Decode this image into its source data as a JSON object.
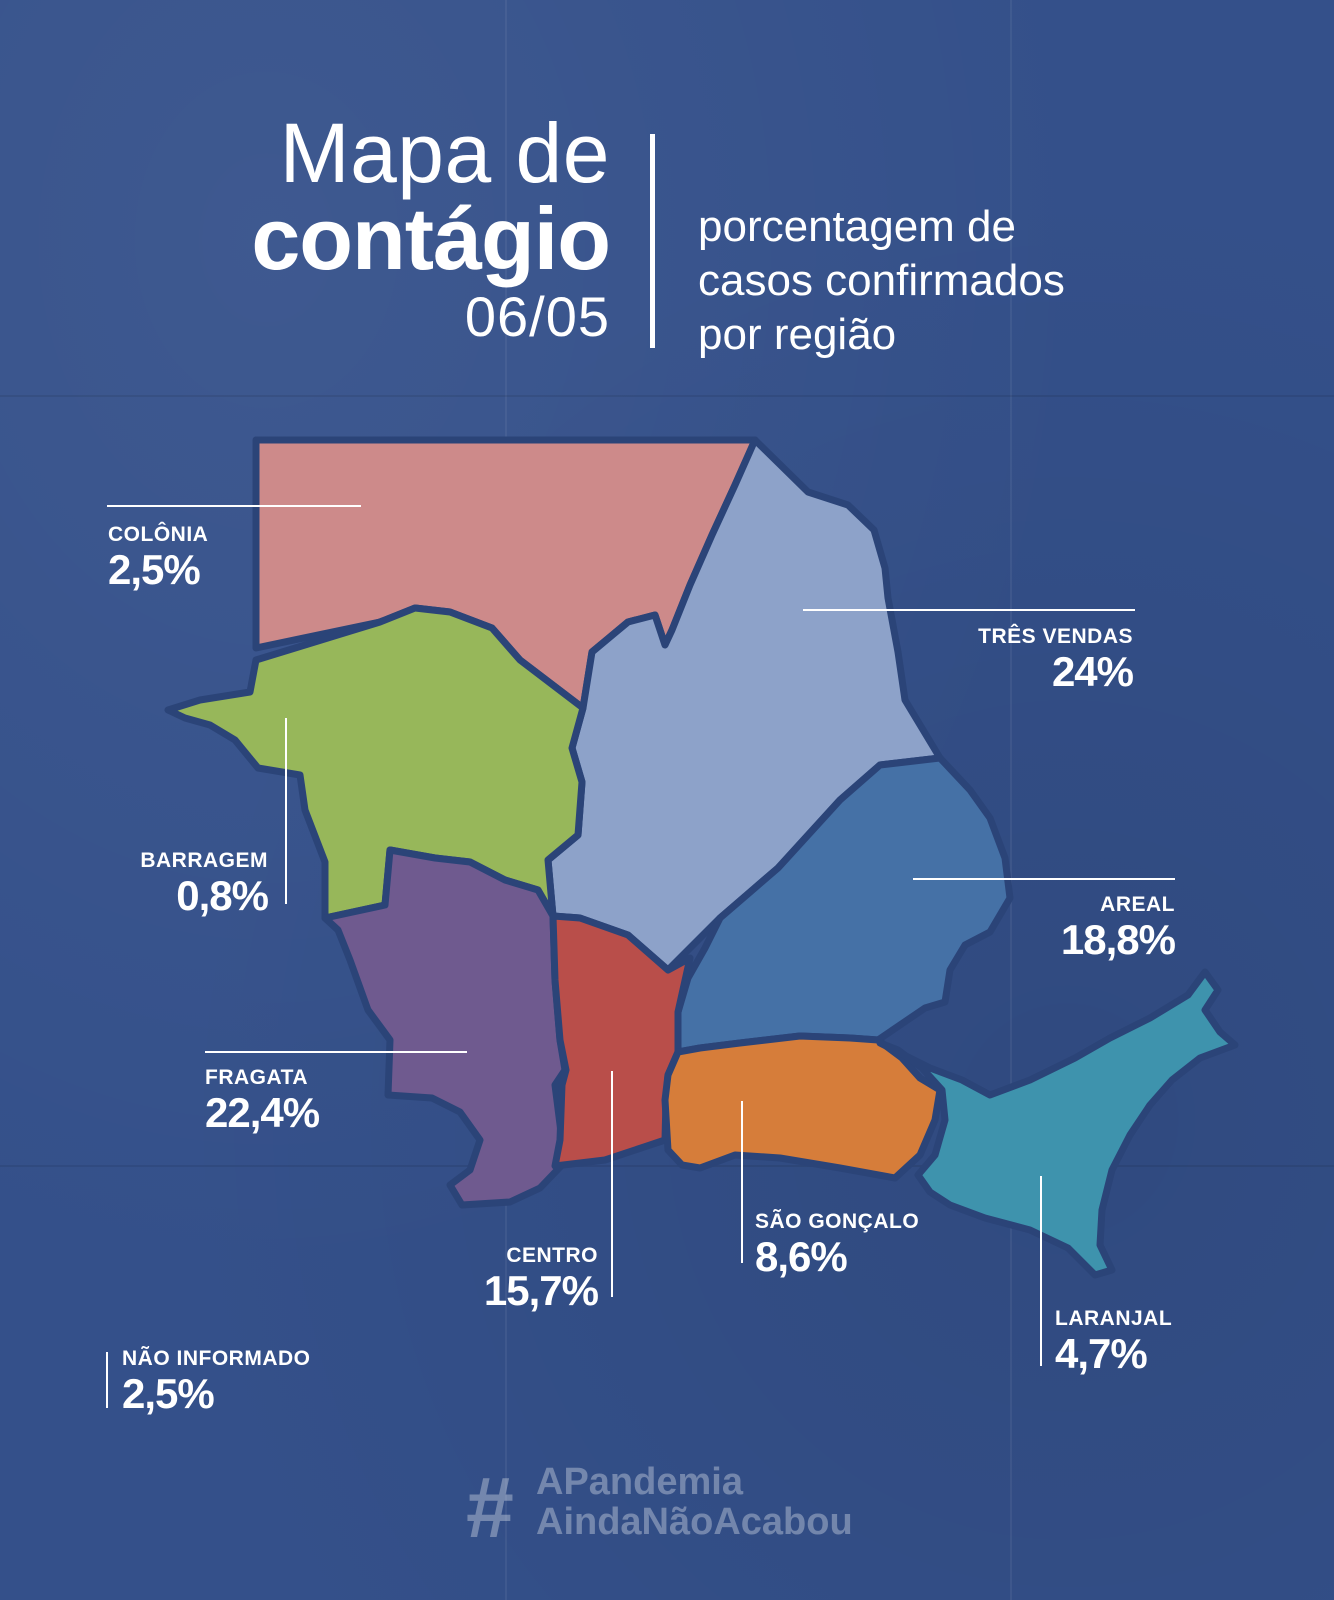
{
  "header": {
    "title_line1": "Mapa de",
    "title_line2": "contágio",
    "date": "06/05",
    "subtitle_lines": [
      "porcentagem de",
      "casos confirmados",
      "por região"
    ]
  },
  "regions": {
    "colonia": {
      "name": "COLÔNIA",
      "percent": "2,5%",
      "color": "#cd8a8a"
    },
    "tres_vendas": {
      "name": "TRÊS VENDAS",
      "percent": "24%",
      "color": "#8da2c9"
    },
    "barragem": {
      "name": "BARRAGEM",
      "percent": "0,8%",
      "color": "#97b75a"
    },
    "areal": {
      "name": "AREAL",
      "percent": "18,8%",
      "color": "#4571a6"
    },
    "fragata": {
      "name": "FRAGATA",
      "percent": "22,4%",
      "color": "#6f5a8f"
    },
    "centro": {
      "name": "CENTRO",
      "percent": "15,7%",
      "color": "#b94e4a"
    },
    "sao_goncalo": {
      "name": "SÃO GONÇALO",
      "percent": "8,6%",
      "color": "#d67d3a"
    },
    "laranjal": {
      "name": "LARANJAL",
      "percent": "4,7%",
      "color": "#3e93ad"
    },
    "nao_informado": {
      "name": "NÃO INFORMADO",
      "percent": "2,5%"
    }
  },
  "hashtag": {
    "symbol": "#",
    "line1": "APandemia",
    "line2": "AindaNãoAcabou"
  },
  "colors": {
    "background": "#34508a",
    "border": "#2b4478",
    "text": "#ffffff"
  }
}
